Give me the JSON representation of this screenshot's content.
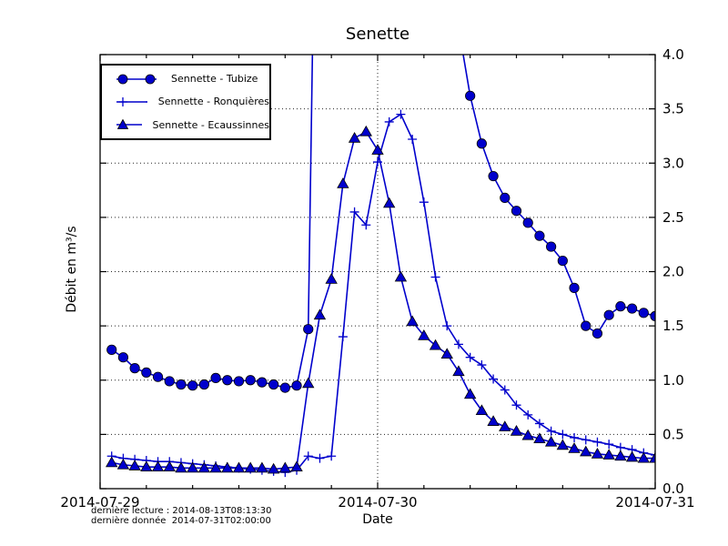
{
  "chart_data": {
    "type": "line",
    "title": "Senette",
    "xlabel": "Date",
    "ylabel": "Débit en m³/s",
    "x_unit": "hours since 2014-07-29 00:00",
    "xlim": [
      0,
      48
    ],
    "ylim": [
      0.0,
      4.0
    ],
    "y_ticks": [
      0.0,
      0.5,
      1.0,
      1.5,
      2.0,
      2.5,
      3.0,
      3.5,
      4.0
    ],
    "y_tick_labels": [
      "0.0",
      "0.5",
      "1.0",
      "1.5",
      "2.0",
      "2.5",
      "3.0",
      "3.5",
      "4.0"
    ],
    "y_tick_side": "right",
    "x_major_tick_hours": [
      0,
      24,
      48
    ],
    "x_tick_labels": [
      "2014-07-29",
      "2014-07-30",
      "2014-07-31"
    ],
    "x_minor_tick_interval_hours": 4,
    "grid": {
      "style": "dotted",
      "horizontal_at": [
        0.5,
        1.0,
        1.5,
        2.0,
        2.5,
        3.0,
        3.5
      ],
      "vertical_at_hours": [
        24
      ]
    },
    "line_color": "#0000cc",
    "legend_position": "upper-left",
    "series": [
      {
        "name": "Sennette - Tubize",
        "marker": "circle",
        "color": "#0000cc",
        "note": "curve exceeds 4.0 m³/s (off-chart) between ~19h and ~31h; bracketing values estimated",
        "points": [
          [
            1,
            1.28
          ],
          [
            2,
            1.21
          ],
          [
            3,
            1.11
          ],
          [
            4,
            1.07
          ],
          [
            5,
            1.03
          ],
          [
            6,
            0.99
          ],
          [
            7,
            0.96
          ],
          [
            8,
            0.95
          ],
          [
            9,
            0.96
          ],
          [
            10,
            1.02
          ],
          [
            11,
            1.0
          ],
          [
            12,
            0.99
          ],
          [
            13,
            1.0
          ],
          [
            14,
            0.98
          ],
          [
            15,
            0.96
          ],
          [
            16,
            0.93
          ],
          [
            17,
            0.95
          ],
          [
            18,
            1.47
          ],
          [
            19,
            8.5
          ],
          [
            31,
            4.25
          ],
          [
            32,
            3.62
          ],
          [
            33,
            3.18
          ],
          [
            34,
            2.88
          ],
          [
            35,
            2.68
          ],
          [
            36,
            2.56
          ],
          [
            37,
            2.45
          ],
          [
            38,
            2.33
          ],
          [
            39,
            2.23
          ],
          [
            40,
            2.1
          ],
          [
            41,
            1.85
          ],
          [
            42,
            1.5
          ],
          [
            43,
            1.43
          ],
          [
            44,
            1.6
          ],
          [
            45,
            1.68
          ],
          [
            46,
            1.66
          ],
          [
            47,
            1.62
          ],
          [
            48,
            1.59
          ]
        ],
        "offscale_point_hours": [
          19,
          31
        ]
      },
      {
        "name": "Sennette - Ronquières",
        "marker": "plus",
        "color": "#0000cc",
        "points": [
          [
            1,
            0.3
          ],
          [
            2,
            0.28
          ],
          [
            3,
            0.27
          ],
          [
            4,
            0.26
          ],
          [
            5,
            0.25
          ],
          [
            6,
            0.25
          ],
          [
            7,
            0.24
          ],
          [
            8,
            0.23
          ],
          [
            9,
            0.22
          ],
          [
            10,
            0.21
          ],
          [
            11,
            0.2
          ],
          [
            12,
            0.19
          ],
          [
            13,
            0.18
          ],
          [
            14,
            0.17
          ],
          [
            15,
            0.16
          ],
          [
            16,
            0.15
          ],
          [
            17,
            0.17
          ],
          [
            18,
            0.3
          ],
          [
            19,
            0.28
          ],
          [
            20,
            0.3
          ],
          [
            21,
            1.4
          ],
          [
            22,
            2.55
          ],
          [
            23,
            2.43
          ],
          [
            24,
            3.01
          ],
          [
            25,
            3.38
          ],
          [
            26,
            3.45
          ],
          [
            27,
            3.22
          ],
          [
            28,
            2.64
          ],
          [
            29,
            1.95
          ],
          [
            30,
            1.5
          ],
          [
            31,
            1.33
          ],
          [
            32,
            1.21
          ],
          [
            33,
            1.14
          ],
          [
            34,
            1.01
          ],
          [
            35,
            0.91
          ],
          [
            36,
            0.77
          ],
          [
            37,
            0.68
          ],
          [
            38,
            0.6
          ],
          [
            39,
            0.53
          ],
          [
            40,
            0.5
          ],
          [
            41,
            0.47
          ],
          [
            42,
            0.45
          ],
          [
            43,
            0.43
          ],
          [
            44,
            0.41
          ],
          [
            45,
            0.38
          ],
          [
            46,
            0.36
          ],
          [
            47,
            0.33
          ],
          [
            48,
            0.31
          ]
        ],
        "offscale_point_hours": []
      },
      {
        "name": "Sennette - Ecaussinnes",
        "marker": "triangle",
        "color": "#0000cc",
        "points": [
          [
            1,
            0.24
          ],
          [
            2,
            0.22
          ],
          [
            3,
            0.21
          ],
          [
            4,
            0.2
          ],
          [
            5,
            0.2
          ],
          [
            6,
            0.2
          ],
          [
            7,
            0.19
          ],
          [
            8,
            0.19
          ],
          [
            9,
            0.19
          ],
          [
            10,
            0.19
          ],
          [
            11,
            0.19
          ],
          [
            12,
            0.19
          ],
          [
            13,
            0.19
          ],
          [
            14,
            0.19
          ],
          [
            15,
            0.18
          ],
          [
            16,
            0.19
          ],
          [
            17,
            0.2
          ],
          [
            18,
            0.97
          ],
          [
            19,
            1.6
          ],
          [
            20,
            1.93
          ],
          [
            21,
            2.81
          ],
          [
            22,
            3.23
          ],
          [
            23,
            3.29
          ],
          [
            24,
            3.12
          ],
          [
            25,
            2.63
          ],
          [
            26,
            1.95
          ],
          [
            27,
            1.54
          ],
          [
            28,
            1.41
          ],
          [
            29,
            1.32
          ],
          [
            30,
            1.24
          ],
          [
            31,
            1.08
          ],
          [
            32,
            0.87
          ],
          [
            33,
            0.72
          ],
          [
            34,
            0.62
          ],
          [
            35,
            0.57
          ],
          [
            36,
            0.53
          ],
          [
            37,
            0.49
          ],
          [
            38,
            0.46
          ],
          [
            39,
            0.43
          ],
          [
            40,
            0.4
          ],
          [
            41,
            0.37
          ],
          [
            42,
            0.34
          ],
          [
            43,
            0.32
          ],
          [
            44,
            0.31
          ],
          [
            45,
            0.3
          ],
          [
            46,
            0.29
          ],
          [
            47,
            0.28
          ],
          [
            48,
            0.28
          ]
        ],
        "offscale_point_hours": []
      }
    ],
    "annotations": [
      "dernière lecture : 2014-08-13T08:13:30",
      "dernière donnée  2014-07-31T02:00:00"
    ]
  }
}
